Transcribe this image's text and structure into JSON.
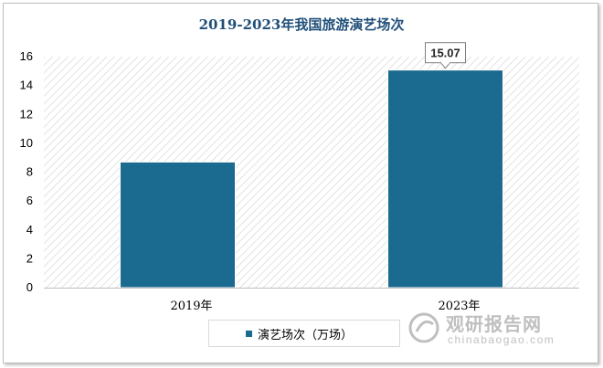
{
  "chart_data": {
    "type": "bar",
    "title": "2019-2023年我国旅游演艺场次",
    "categories": [
      "2019年",
      "2023年"
    ],
    "series": [
      {
        "name": "演艺场次（万场）",
        "values": [
          8.7,
          15.07
        ],
        "data_labels": [
          null,
          "15.07"
        ]
      }
    ],
    "ylim": [
      0,
      16
    ],
    "yticks": [
      "0",
      "2",
      "4",
      "6",
      "8",
      "10",
      "12",
      "14",
      "16"
    ],
    "grid": false,
    "plot_background": "diagonal-hatch",
    "legend_position": "bottom",
    "bar_color": "#1b6a8f"
  },
  "legend": {
    "label": "演艺场次（万场）"
  },
  "watermark": {
    "cn": "观研报告网",
    "en": "chinabaogao.com"
  }
}
